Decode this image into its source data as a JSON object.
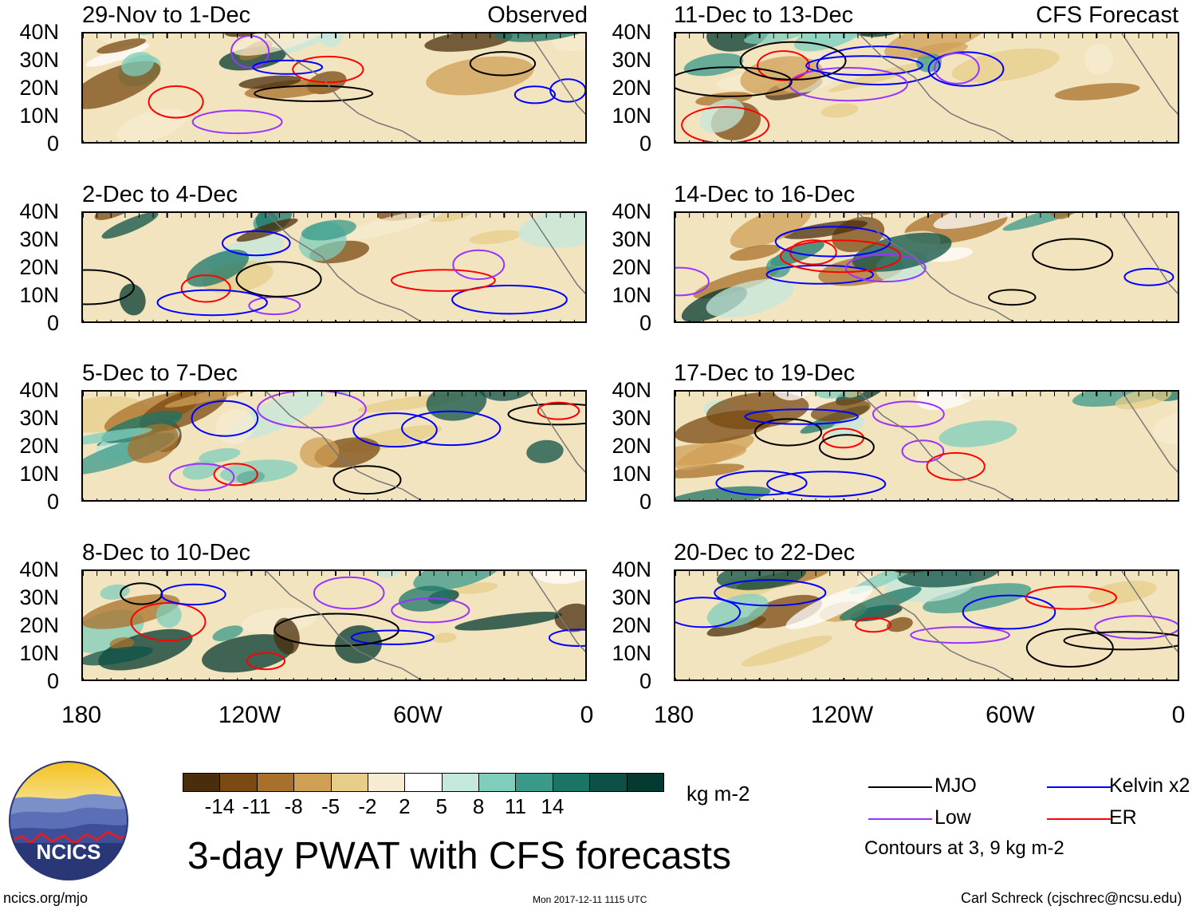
{
  "chart_data": {
    "type": "heatmap",
    "title": "3-day PWAT with CFS forecasts",
    "units": "kg m-2",
    "y_ticks": [
      "40N",
      "30N",
      "20N",
      "10N",
      "0"
    ],
    "x_ticks": [
      "180",
      "120W",
      "60W",
      "0"
    ],
    "columns": [
      {
        "header": "Observed",
        "panels": [
          "29-Nov to 1-Dec",
          "2-Dec to 4-Dec",
          "5-Dec to 7-Dec",
          "8-Dec to 10-Dec"
        ]
      },
      {
        "header": "CFS Forecast",
        "panels": [
          "11-Dec to 13-Dec",
          "14-Dec to 16-Dec",
          "17-Dec to 19-Dec",
          "20-Dec to 22-Dec"
        ]
      }
    ],
    "colorbar": {
      "labels": [
        "-14",
        "-11",
        "-8",
        "-5",
        "-2",
        "2",
        "5",
        "8",
        "11",
        "14"
      ],
      "colors": [
        "#4a2d0c",
        "#7a4a12",
        "#a8702a",
        "#cf9f55",
        "#e6cd8a",
        "#f7ecd2",
        "#ffffff",
        "#c4e8de",
        "#7fcdbb",
        "#3a9a8a",
        "#1b7567",
        "#0d5146",
        "#043a2f"
      ]
    },
    "legend": [
      {
        "label": "MJO",
        "color": "#000000"
      },
      {
        "label": "Kelvin x2",
        "color": "#0000ff"
      },
      {
        "label": "Low",
        "color": "#9933ff"
      },
      {
        "label": "ER",
        "color": "#ff0000"
      }
    ],
    "contour_note": "Contours at 3, 9 kg m-2"
  },
  "footer": {
    "logo_text": "NCICS",
    "left": "ncics.org/mjo",
    "center": "Mon 2017-12-11 1115 UTC",
    "right": "Carl Schreck (cjschrec@ncsu.edu)"
  }
}
